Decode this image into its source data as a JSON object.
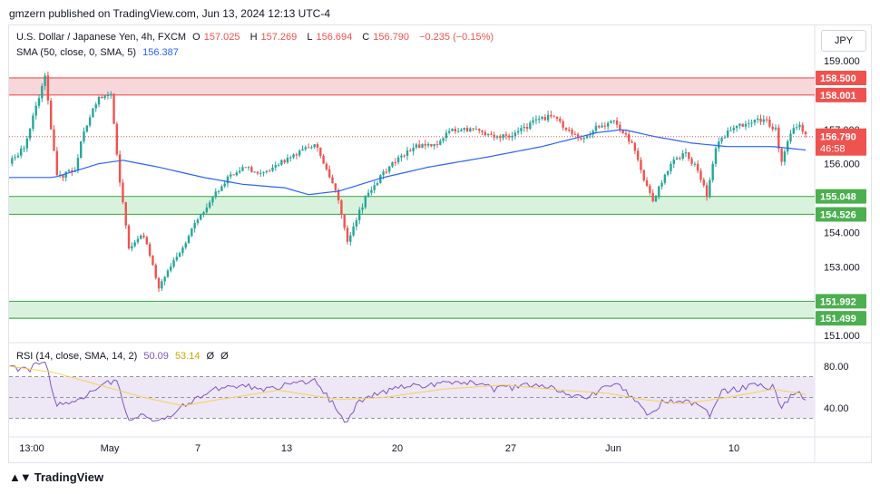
{
  "header": {
    "publisher": "gmzern published on TradingView.com, Jun 13, 2024 12:13 UTC-4"
  },
  "legend": {
    "symbol": "U.S. Dollar / Japanese Yen, 4h, FXCM",
    "o_label": "O",
    "o": "157.025",
    "h_label": "H",
    "h": "157.269",
    "l_label": "L",
    "l": "156.694",
    "c_label": "C",
    "c": "156.790",
    "change": "−0.235 (−0.15%)",
    "sma_label": "SMA (50, close, 0, SMA, 5)",
    "sma_value": "156.387",
    "rsi_label": "RSI (14, close, SMA, 14, 2)",
    "rsi_value": "50.09",
    "rsi_sma_value": "53.14",
    "rsi_extra1": "Ø",
    "rsi_extra2": "Ø"
  },
  "currency": "JPY",
  "footer": {
    "brand": "TradingView"
  },
  "colors": {
    "up": "#26a69a",
    "down": "#ef5350",
    "sma": "#2962ff",
    "rsi": "#7e57c2",
    "rsi_sma": "#f7d154",
    "resist": "#f8d7da",
    "support": "#d9f2dd"
  },
  "chart_data": [
    {
      "type": "candlestick",
      "title": "U.S. Dollar / Japanese Yen, 4h, FXCM",
      "y_ticks": [
        "159.000",
        "158.000",
        "157.000",
        "156.000",
        "155.000",
        "154.000",
        "153.000",
        "152.000",
        "151.000"
      ],
      "ylim": [
        151.0,
        159.5
      ],
      "x_ticks": [
        "13:00",
        "May",
        "7",
        "13",
        "20",
        "27",
        "Jun",
        "10"
      ],
      "x_tick_positions": [
        0.0,
        0.2,
        0.4,
        0.6,
        0.8,
        1.0,
        1.2,
        1.4
      ],
      "price_labels": [
        {
          "value": 158.5,
          "label": "158.500",
          "zone": "resistance"
        },
        {
          "value": 158.001,
          "label": "158.001",
          "zone": "resistance"
        },
        {
          "value": 155.048,
          "label": "155.048",
          "zone": "support"
        },
        {
          "value": 154.526,
          "label": "154.526",
          "zone": "support"
        },
        {
          "value": 151.992,
          "label": "151.992",
          "zone": "support"
        },
        {
          "value": 151.499,
          "label": "151.499",
          "zone": "support"
        }
      ],
      "current_price": {
        "value": 156.79,
        "label": "156.790",
        "countdown": "46:58"
      },
      "zones": [
        {
          "from": 158.001,
          "to": 158.5,
          "kind": "resistance"
        },
        {
          "from": 154.526,
          "to": 155.048,
          "kind": "support"
        },
        {
          "from": 151.499,
          "to": 151.992,
          "kind": "support"
        }
      ],
      "path": [
        [
          0,
          156.0
        ],
        [
          5,
          156.5
        ],
        [
          12,
          158.5
        ],
        [
          16,
          155.6
        ],
        [
          22,
          155.8
        ],
        [
          25,
          157.0
        ],
        [
          30,
          157.9
        ],
        [
          34,
          158.0
        ],
        [
          37,
          155.5
        ],
        [
          40,
          153.6
        ],
        [
          45,
          153.9
        ],
        [
          50,
          152.4
        ],
        [
          53,
          152.9
        ],
        [
          58,
          153.6
        ],
        [
          63,
          154.4
        ],
        [
          68,
          155.0
        ],
        [
          73,
          155.6
        ],
        [
          78,
          155.9
        ],
        [
          84,
          155.7
        ],
        [
          90,
          156.0
        ],
        [
          96,
          156.3
        ],
        [
          102,
          156.6
        ],
        [
          107,
          155.6
        ],
        [
          110,
          155.0
        ],
        [
          113,
          153.7
        ],
        [
          116,
          154.4
        ],
        [
          120,
          155.2
        ],
        [
          125,
          155.7
        ],
        [
          130,
          156.2
        ],
        [
          136,
          156.5
        ],
        [
          142,
          156.5
        ],
        [
          148,
          157.0
        ],
        [
          155,
          157.0
        ],
        [
          162,
          156.8
        ],
        [
          168,
          156.8
        ],
        [
          175,
          157.2
        ],
        [
          181,
          157.4
        ],
        [
          186,
          157.0
        ],
        [
          192,
          156.7
        ],
        [
          196,
          157.1
        ],
        [
          202,
          157.2
        ],
        [
          208,
          156.6
        ],
        [
          212,
          155.5
        ],
        [
          215,
          154.9
        ],
        [
          218,
          155.5
        ],
        [
          222,
          156.1
        ],
        [
          226,
          156.3
        ],
        [
          230,
          155.8
        ],
        [
          233,
          155.1
        ],
        [
          236,
          156.5
        ],
        [
          240,
          156.9
        ],
        [
          244,
          157.1
        ],
        [
          248,
          157.2
        ],
        [
          252,
          157.3
        ],
        [
          256,
          157.0
        ],
        [
          258,
          156.0
        ],
        [
          261,
          156.9
        ],
        [
          264,
          157.2
        ],
        [
          266,
          156.8
        ]
      ],
      "sma_path": [
        [
          0,
          155.6
        ],
        [
          15,
          155.6
        ],
        [
          30,
          156.0
        ],
        [
          38,
          156.1
        ],
        [
          50,
          155.9
        ],
        [
          65,
          155.6
        ],
        [
          78,
          155.4
        ],
        [
          92,
          155.3
        ],
        [
          100,
          155.1
        ],
        [
          110,
          155.2
        ],
        [
          125,
          155.6
        ],
        [
          140,
          155.9
        ],
        [
          160,
          156.2
        ],
        [
          178,
          156.5
        ],
        [
          196,
          156.9
        ],
        [
          205,
          157.0
        ],
        [
          215,
          156.8
        ],
        [
          228,
          156.6
        ],
        [
          240,
          156.5
        ],
        [
          255,
          156.5
        ],
        [
          266,
          156.4
        ]
      ]
    },
    {
      "type": "line",
      "title": "RSI (14, close, SMA, 14, 2)",
      "y_ticks": [
        "80.00",
        "40.00"
      ],
      "ylim": [
        20,
        95
      ],
      "bands": {
        "upper": 70,
        "mid": 50,
        "lower": 30
      },
      "series": [
        {
          "kind": "rsi",
          "values": [
            [
              0,
              78
            ],
            [
              6,
              76
            ],
            [
              12,
              85
            ],
            [
              16,
              42
            ],
            [
              22,
              45
            ],
            [
              30,
              62
            ],
            [
              36,
              65
            ],
            [
              40,
              28
            ],
            [
              45,
              35
            ],
            [
              50,
              27
            ],
            [
              55,
              35
            ],
            [
              60,
              45
            ],
            [
              66,
              55
            ],
            [
              72,
              60
            ],
            [
              78,
              62
            ],
            [
              84,
              58
            ],
            [
              90,
              60
            ],
            [
              96,
              64
            ],
            [
              102,
              67
            ],
            [
              106,
              52
            ],
            [
              110,
              38
            ],
            [
              113,
              24
            ],
            [
              116,
              44
            ],
            [
              120,
              52
            ],
            [
              126,
              55
            ],
            [
              132,
              60
            ],
            [
              140,
              62
            ],
            [
              148,
              65
            ],
            [
              155,
              64
            ],
            [
              162,
              58
            ],
            [
              170,
              60
            ],
            [
              178,
              62
            ],
            [
              186,
              55
            ],
            [
              192,
              48
            ],
            [
              198,
              58
            ],
            [
              204,
              62
            ],
            [
              210,
              44
            ],
            [
              214,
              32
            ],
            [
              218,
              45
            ],
            [
              224,
              48
            ],
            [
              230,
              42
            ],
            [
              234,
              33
            ],
            [
              238,
              55
            ],
            [
              244,
              59
            ],
            [
              250,
              62
            ],
            [
              255,
              60
            ],
            [
              258,
              40
            ],
            [
              262,
              55
            ],
            [
              266,
              50
            ]
          ]
        },
        {
          "kind": "rsi_sma",
          "values": [
            [
              0,
              80
            ],
            [
              15,
              74
            ],
            [
              30,
              62
            ],
            [
              45,
              50
            ],
            [
              58,
              42
            ],
            [
              70,
              48
            ],
            [
              90,
              57
            ],
            [
              110,
              48
            ],
            [
              125,
              50
            ],
            [
              145,
              58
            ],
            [
              165,
              62
            ],
            [
              185,
              57
            ],
            [
              200,
              54
            ],
            [
              212,
              48
            ],
            [
              225,
              44
            ],
            [
              240,
              50
            ],
            [
              255,
              58
            ],
            [
              266,
              53
            ]
          ]
        }
      ]
    }
  ]
}
